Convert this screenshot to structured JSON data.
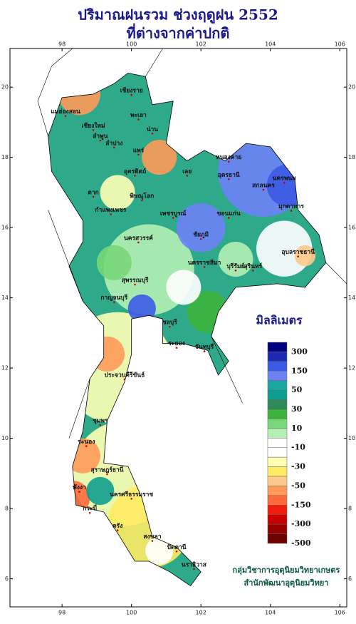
{
  "title": [
    "ปริมาณฝนรวม ช่วงฤดูฝน 2552",
    "ที่ต่างจากค่าปกติ"
  ],
  "map": {
    "lonlim": [
      96.5,
      106.2
    ],
    "latlim": [
      5.2,
      21.1
    ],
    "lonticks": [
      98,
      100,
      102,
      104,
      106
    ],
    "latticks": [
      6,
      8,
      10,
      12,
      14,
      16,
      18,
      20
    ]
  },
  "provinces": [
    "เชียงราย",
    "แม่ฮ่องสอน",
    "เชียงใหม่",
    "ลำพูน",
    "ลำปาง",
    "พะเยา",
    "น่าน",
    "แพร่",
    "อุตรดิตถ์",
    "ตาก",
    "กำแพงเพชร",
    "พิษณุโลก",
    "เพชรบูรณ์",
    "นครสวรรค์",
    "หนองคาย",
    "อุดรธานี",
    "เลย",
    "นครพนม",
    "สกลนคร",
    "มุกดาหาร",
    "ขอนแก่น",
    "ชัยภูมิ",
    "นครราชสีมา",
    "บุรีรัมย์",
    "สุรินทร์",
    "อุบลราชธานี",
    "กาญจนบุรี",
    "สุพรรณบุรี",
    "ชลบุรี",
    "ระยอง",
    "จันทบุรี",
    "ประจวบคีรีขันธ์",
    "ชุมพร",
    "ระนอง",
    "สุราษฎร์ธานี",
    "นครศรีธรรมราช",
    "พังงา",
    "กระบี่",
    "ตรัง",
    "สงขลา",
    "ปัตตานี",
    "นราธิวาส"
  ],
  "legend": {
    "title": "มิลลิเมตร",
    "labels": [
      300,
      150,
      50,
      30,
      10,
      -10,
      -30,
      -50,
      -150,
      -300,
      -500
    ],
    "colors": [
      "#000080",
      "#1e2ab4",
      "#3c5ae6",
      "#6e82f5",
      "#18a8a0",
      "#0f9d8f",
      "#2e8b57",
      "#3cb43c",
      "#78d778",
      "#b4f0b4",
      "#ffffff",
      "#ffffff",
      "#ffffb4",
      "#ffeb64",
      "#ffc88c",
      "#ff9a5a",
      "#ff6a3c",
      "#f01e0a",
      "#c80000",
      "#960000",
      "#6e0000"
    ]
  },
  "credits": [
    "กลุ่มวิชาการอุตุนิยมวิทยาเกษตร",
    "สำนักพัฒนาอุตุนิยมวิทยา"
  ]
}
